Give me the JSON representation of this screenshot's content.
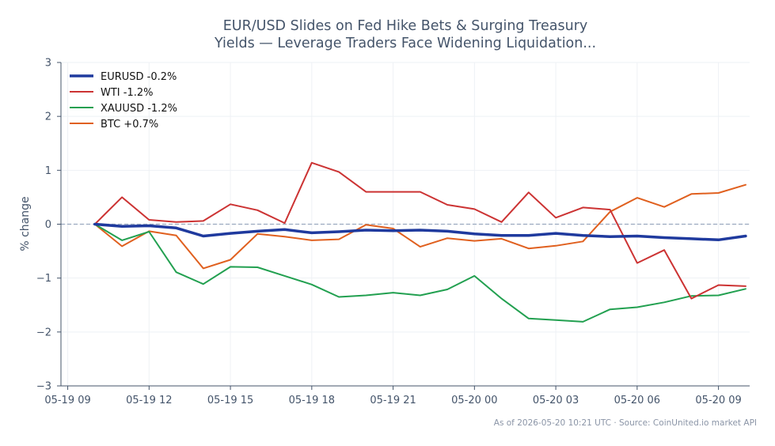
{
  "chart_data": {
    "type": "line",
    "title_lines": [
      "EUR/USD Slides on Fed Hike Bets & Surging Treasury",
      "Yields — Leverage Traders Face Widening Liquidation..."
    ],
    "xlabel": "",
    "ylabel": "% change",
    "ylim": [
      -3,
      3
    ],
    "yticks": [
      3,
      2,
      1,
      0,
      -1,
      -2,
      -3
    ],
    "ytick_labels": [
      "3",
      "2",
      "1",
      "0",
      "−1",
      "−2",
      "−3"
    ],
    "xlim_hours": [
      -0.25,
      25.15
    ],
    "xticks": [
      {
        "hour": 0,
        "label": "05-19 09"
      },
      {
        "hour": 3,
        "label": "05-19 12"
      },
      {
        "hour": 6,
        "label": "05-19 15"
      },
      {
        "hour": 9,
        "label": "05-19 18"
      },
      {
        "hour": 12,
        "label": "05-19 21"
      },
      {
        "hour": 15,
        "label": "05-20 00"
      },
      {
        "hour": 18,
        "label": "05-20 03"
      },
      {
        "hour": 21,
        "label": "05-20 06"
      },
      {
        "hour": 24,
        "label": "05-20 09"
      }
    ],
    "x_hours": [
      1,
      2,
      3,
      4,
      5,
      6,
      7,
      8,
      9,
      10,
      11,
      12,
      13,
      14,
      15,
      16,
      17,
      18,
      19,
      20,
      21,
      22,
      23,
      24,
      25
    ],
    "zero_line": true,
    "grid": true,
    "legend_position": "top-left",
    "series": [
      {
        "name": "EURUSD -0.2%",
        "color": "#1f3a9e",
        "values": [
          0.0,
          -0.04,
          -0.03,
          -0.07,
          -0.22,
          -0.17,
          -0.13,
          -0.1,
          -0.16,
          -0.14,
          -0.11,
          -0.12,
          -0.11,
          -0.13,
          -0.18,
          -0.21,
          -0.21,
          -0.17,
          -0.21,
          -0.23,
          -0.22,
          -0.25,
          -0.27,
          -0.29,
          -0.22
        ]
      },
      {
        "name": "WTI -1.2%",
        "color": "#cc3333",
        "values": [
          0.0,
          0.5,
          0.08,
          0.04,
          0.06,
          0.37,
          0.26,
          0.02,
          1.14,
          0.97,
          0.6,
          0.6,
          0.6,
          0.36,
          0.28,
          0.04,
          0.59,
          0.12,
          0.31,
          0.27,
          -0.72,
          -0.48,
          -1.38,
          -1.13,
          -1.15
        ]
      },
      {
        "name": "XAUUSD -1.2%",
        "color": "#22a050",
        "values": [
          0.0,
          -0.3,
          -0.14,
          -0.89,
          -1.11,
          -0.79,
          -0.8,
          -0.96,
          -1.12,
          -1.35,
          -1.32,
          -1.27,
          -1.32,
          -1.21,
          -0.96,
          -1.38,
          -1.75,
          -1.78,
          -1.81,
          -1.58,
          -1.54,
          -1.45,
          -1.33,
          -1.32,
          -1.2
        ]
      },
      {
        "name": "BTC +0.7%",
        "color": "#e0601f",
        "values": [
          0.0,
          -0.41,
          -0.13,
          -0.21,
          -0.82,
          -0.66,
          -0.18,
          -0.23,
          -0.3,
          -0.28,
          -0.01,
          -0.08,
          -0.42,
          -0.26,
          -0.31,
          -0.27,
          -0.45,
          -0.4,
          -0.32,
          0.23,
          0.49,
          0.32,
          0.56,
          0.58,
          0.73
        ]
      }
    ]
  },
  "footer": "As of 2026-05-20 10:21 UTC · Source: CoinUnited.io market API"
}
